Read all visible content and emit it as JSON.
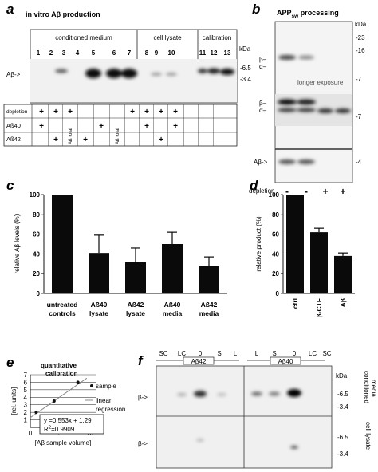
{
  "panel_a": {
    "letter": "a",
    "title": "in vitro Aβ production",
    "groups": [
      "conditioned medium",
      "cell lysate",
      "calibration"
    ],
    "kda_label": "kDa",
    "kda_marks": [
      "-6.5",
      "-3.4"
    ],
    "lanes": [
      "1",
      "2",
      "3",
      "4",
      "5",
      "6",
      "7",
      "8",
      "9",
      "10",
      "11",
      "12",
      "13"
    ],
    "band_label": "Aβ->",
    "rows": [
      {
        "label": "depletion",
        "cells": [
          "+",
          "+",
          "+",
          "",
          "",
          "",
          "+",
          "+",
          "+",
          "+",
          "",
          "",
          ""
        ]
      },
      {
        "label": "Aß40",
        "cells": [
          "+",
          "",
          "",
          "",
          "+",
          "",
          "",
          "+",
          "",
          "+",
          "",
          "",
          ""
        ]
      },
      {
        "label": "Aß42",
        "cells": [
          "",
          "+",
          "Aß total",
          "+",
          "",
          "Aß total",
          "",
          "",
          "+",
          "",
          "",
          "",
          ""
        ]
      }
    ]
  },
  "panel_b": {
    "letter": "b",
    "title_main": "APP",
    "title_sub": "sw",
    "title_rest": " processing",
    "kda_label": "kDa",
    "kda_marks": [
      "-23",
      "-16",
      "-7",
      "-7",
      "-4"
    ],
    "beta_label": "β–",
    "alpha_label": "α–",
    "exposure_note": "longer exposure",
    "abeta_label": "Aβ->",
    "depletion_label": "depletion",
    "depletion_signs": [
      "-",
      "-",
      "+",
      "+"
    ]
  },
  "panel_c": {
    "letter": "c",
    "chart_data": {
      "type": "bar",
      "categories": [
        "untreated controls",
        "Aß40 lysate",
        "Aß42 lysate",
        "Aß40 media",
        "Aß42 media"
      ],
      "values": [
        100,
        41,
        32,
        50,
        28
      ],
      "errors": [
        0,
        18,
        14,
        12,
        9
      ],
      "ylabel": "relative Aβ levels (%)",
      "ylim": [
        0,
        100
      ],
      "yticks": [
        "0",
        "20",
        "40",
        "60",
        "80",
        "100"
      ]
    },
    "xlabels": [
      [
        "untreated",
        "controls"
      ],
      [
        "Aß40",
        "lysate"
      ],
      [
        "Aß42",
        "lysate"
      ],
      [
        "Aß40",
        "media"
      ],
      [
        "Aß42",
        "media"
      ]
    ]
  },
  "panel_d": {
    "letter": "d",
    "chart_data": {
      "type": "bar",
      "categories": [
        "ctrl",
        "β-CTF",
        "Aβ"
      ],
      "values": [
        100,
        62,
        38
      ],
      "errors": [
        0,
        4,
        3
      ],
      "ylabel": "relative product (%)",
      "ylim": [
        0,
        100
      ],
      "yticks": [
        "0",
        "20",
        "40",
        "60",
        "80",
        "100"
      ]
    }
  },
  "panel_e": {
    "letter": "e",
    "title": [
      "quantitative",
      "calibration"
    ],
    "chart_data": {
      "type": "scatter",
      "x": [
        1,
        4,
        8
      ],
      "y": [
        2,
        3.5,
        6
      ],
      "fit": {
        "slope": 0.553,
        "intercept": 1.29
      },
      "xlabel": "[Aβ sample volume]",
      "ylabel": "[rel. units]",
      "xlim": [
        0,
        11
      ],
      "ylim": [
        0,
        7
      ],
      "xticks": [
        "0",
        "5",
        "10"
      ],
      "yticks": [
        "1",
        "2",
        "3",
        "4",
        "5",
        "6",
        "7"
      ]
    },
    "legend_sample": "sample",
    "legend_regression": [
      "linear",
      "regression"
    ],
    "equation": "y =0.553x + 1.29",
    "r2_prefix": "R",
    "r2_exp": "2",
    "r2_value": "=0.9909"
  },
  "panel_f": {
    "letter": "f",
    "lanes": [
      "SC",
      "LC",
      "0",
      "S",
      "L",
      "L",
      "S",
      "0",
      "LC",
      "SC"
    ],
    "group_left": "Aβ42",
    "group_right": "Aβ40",
    "kda_label": "kDa",
    "kda_marks": [
      "-6.5",
      "-3.4",
      "-6.5",
      "-3.4"
    ],
    "beta_label": "β->",
    "side_top": [
      "conditioned",
      "media"
    ],
    "side_bottom": [
      "cell lysate"
    ]
  }
}
